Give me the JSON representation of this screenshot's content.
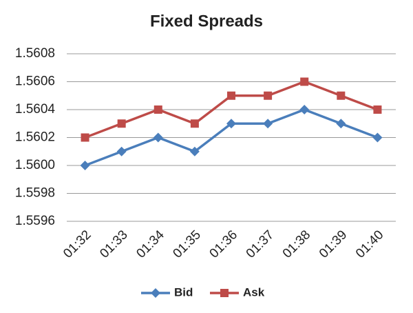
{
  "chart_data": {
    "type": "line",
    "title": "Fixed Spreads",
    "categories": [
      "01:32",
      "01:33",
      "01:34",
      "01:35",
      "01:36",
      "01:37",
      "01:38",
      "01:39",
      "01:40"
    ],
    "series": [
      {
        "name": "Bid",
        "color": "#4a7ebb",
        "marker": "diamond",
        "values": [
          1.56,
          1.5601,
          1.5602,
          1.5601,
          1.5603,
          1.5603,
          1.5604,
          1.5603,
          1.5602
        ]
      },
      {
        "name": "Ask",
        "color": "#be4b48",
        "marker": "square",
        "values": [
          1.5602,
          1.5603,
          1.5604,
          1.5603,
          1.5605,
          1.5605,
          1.5606,
          1.5605,
          1.5604
        ]
      }
    ],
    "ylim": [
      1.5596,
      1.5608
    ],
    "yticks": [
      1.5596,
      1.5598,
      {
        "value": 1.56,
        "label": "1.5600"
      },
      1.5602,
      1.5604,
      1.5606,
      1.5608
    ],
    "grid": true,
    "legend": "bottom"
  }
}
